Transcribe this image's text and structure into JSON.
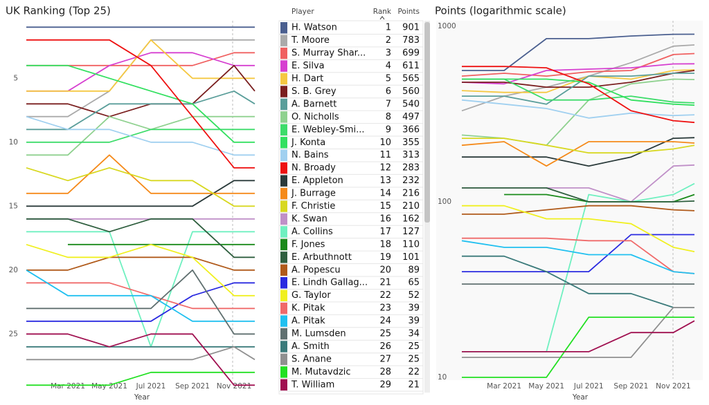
{
  "chart_data": [
    {
      "type": "line",
      "title": "UK Ranking (Top 25)",
      "x_label": "Year",
      "x": [
        "2021-01",
        "2021-03",
        "2021-05",
        "2021-07",
        "2021-09",
        "2021-11",
        "2021-12"
      ],
      "xlim": [
        "2021-01",
        "2021-12"
      ],
      "xticks": [
        {
          "value": "2021-03",
          "label": "Mar 2021"
        },
        {
          "value": "2021-05",
          "label": "May 2021"
        },
        {
          "value": "2021-07",
          "label": "Jul 2021"
        },
        {
          "value": "2021-09",
          "label": "Sep 2021"
        },
        {
          "value": "2021-11",
          "label": "Nov 2021"
        }
      ],
      "ylim": [
        0.5,
        28.5
      ],
      "y_reversed": true,
      "yticks": [
        5,
        10,
        15,
        20,
        25
      ],
      "grid": false,
      "series": [
        {
          "color": "#4a5f8f",
          "values": [
            1,
            1,
            1,
            1,
            1,
            1,
            1
          ]
        },
        {
          "color": "#aaaaaa",
          "values": [
            8,
            8,
            6,
            2,
            2,
            2,
            2
          ]
        },
        {
          "color": "#f06060",
          "values": [
            4,
            4,
            4,
            4,
            4,
            3,
            3
          ]
        },
        {
          "color": "#d63fd0",
          "values": [
            6,
            6,
            4,
            3,
            3,
            4,
            4
          ]
        },
        {
          "color": "#f5c842",
          "values": [
            6,
            6,
            6,
            2,
            5,
            5,
            5
          ]
        },
        {
          "color": "#7a1f1f",
          "values": [
            7,
            7,
            8,
            7,
            7,
            4,
            6
          ]
        },
        {
          "color": "#5a9e9a",
          "values": [
            9,
            9,
            7,
            7,
            7,
            6,
            7
          ]
        },
        {
          "color": "#8fd18f",
          "values": [
            11,
            11,
            8,
            9,
            8,
            8,
            8
          ]
        },
        {
          "color": "#3ddc6a",
          "values": [
            10,
            10,
            10,
            9,
            9,
            9,
            9
          ]
        },
        {
          "color": "#33e060",
          "values": [
            4,
            4,
            5,
            6,
            7,
            10,
            10
          ]
        },
        {
          "color": "#a0d0f0",
          "values": [
            8,
            9,
            9,
            10,
            10,
            11,
            11
          ]
        },
        {
          "color": "#ee1111",
          "values": [
            2,
            2,
            2,
            4,
            8,
            12,
            12
          ]
        },
        {
          "color": "#2a3a3a",
          "values": [
            15,
            15,
            15,
            15,
            15,
            13,
            13
          ]
        },
        {
          "color": "#f58a1a",
          "values": [
            14,
            14,
            11,
            14,
            14,
            14,
            14
          ]
        },
        {
          "color": "#d8d820",
          "values": [
            12,
            13,
            12,
            13,
            13,
            15,
            15
          ]
        },
        {
          "color": "#c090c8",
          "values": [
            16,
            16,
            16,
            16,
            16,
            16,
            16
          ]
        },
        {
          "color": "#6ff0c0",
          "values": [
            17,
            17,
            17,
            26,
            17,
            17,
            17
          ]
        },
        {
          "color": "#1a8a1a",
          "values": [
            null,
            18,
            18,
            18,
            18,
            18,
            18
          ]
        },
        {
          "color": "#2f5f3f",
          "values": [
            16,
            16,
            17,
            16,
            16,
            19,
            19
          ]
        },
        {
          "color": "#b05a1a",
          "values": [
            20,
            20,
            19,
            19,
            19,
            20,
            20
          ]
        },
        {
          "color": "#2a2ae0",
          "values": [
            24,
            24,
            24,
            24,
            22,
            21,
            21
          ]
        },
        {
          "color": "#f0f020",
          "values": [
            18,
            19,
            19,
            18,
            19,
            22,
            22
          ]
        },
        {
          "color": "#f06a6a",
          "values": [
            21,
            21,
            21,
            22,
            23,
            23,
            23
          ]
        },
        {
          "color": "#20c0f0",
          "values": [
            20,
            22,
            22,
            22,
            24,
            24,
            24
          ]
        },
        {
          "color": "#607070",
          "values": [
            23,
            23,
            23,
            23,
            20,
            25,
            25
          ]
        },
        {
          "color": "#3a7a7a",
          "values": [
            26,
            26,
            26,
            26,
            26,
            26,
            26
          ]
        },
        {
          "color": "#909090",
          "values": [
            27,
            27,
            27,
            27,
            27,
            26,
            27
          ]
        },
        {
          "color": "#22e022",
          "values": [
            29,
            29,
            29,
            28,
            28,
            28,
            28
          ]
        },
        {
          "color": "#a01050",
          "values": [
            25,
            25,
            26,
            25,
            25,
            29,
            29
          ]
        }
      ]
    },
    {
      "type": "line",
      "title": "Points (logarithmic scale)",
      "x_label": "Year",
      "x": [
        "2021-01",
        "2021-03",
        "2021-05",
        "2021-07",
        "2021-09",
        "2021-11",
        "2021-12"
      ],
      "xlim": [
        "2021-01",
        "2021-12"
      ],
      "xticks": [
        {
          "value": "2021-03",
          "label": "Mar 2021"
        },
        {
          "value": "2021-05",
          "label": "May 2021"
        },
        {
          "value": "2021-07",
          "label": "Jul 2021"
        },
        {
          "value": "2021-09",
          "label": "Sep 2021"
        },
        {
          "value": "2021-11",
          "label": "Nov 2021"
        }
      ],
      "ylim": [
        10,
        1000
      ],
      "yscale": "log",
      "yticks": [
        10,
        100,
        1000
      ],
      "grid": false,
      "series": [
        {
          "color": "#4a5f8f",
          "values": [
            560,
            560,
            850,
            850,
            880,
            900,
            901
          ]
        },
        {
          "color": "#aaaaaa",
          "values": [
            330,
            400,
            450,
            520,
            620,
            770,
            783
          ]
        },
        {
          "color": "#f06060",
          "values": [
            520,
            540,
            520,
            550,
            560,
            690,
            699
          ]
        },
        {
          "color": "#d63fd0",
          "values": [
            480,
            470,
            560,
            570,
            580,
            610,
            611
          ]
        },
        {
          "color": "#f5c842",
          "values": [
            430,
            420,
            420,
            520,
            500,
            560,
            565
          ]
        },
        {
          "color": "#7a1f1f",
          "values": [
            480,
            480,
            450,
            450,
            480,
            540,
            560
          ]
        },
        {
          "color": "#5a9e9a",
          "values": [
            400,
            400,
            360,
            520,
            520,
            540,
            540
          ]
        },
        {
          "color": "#8fd18f",
          "values": [
            240,
            230,
            210,
            380,
            470,
            500,
            497
          ]
        },
        {
          "color": "#3ddc6a",
          "values": [
            500,
            500,
            380,
            380,
            400,
            370,
            366
          ]
        },
        {
          "color": "#33e060",
          "values": [
            500,
            500,
            500,
            480,
            380,
            360,
            355
          ]
        },
        {
          "color": "#a0d0f0",
          "values": [
            380,
            360,
            340,
            300,
            320,
            310,
            313
          ]
        },
        {
          "color": "#ee1111",
          "values": [
            590,
            590,
            580,
            470,
            330,
            290,
            283
          ]
        },
        {
          "color": "#2a3a3a",
          "values": [
            180,
            180,
            180,
            160,
            180,
            230,
            232
          ]
        },
        {
          "color": "#f58a1a",
          "values": [
            210,
            220,
            160,
            220,
            220,
            220,
            216
          ]
        },
        {
          "color": "#d8d820",
          "values": [
            230,
            230,
            210,
            190,
            190,
            200,
            210
          ]
        },
        {
          "color": "#c090c8",
          "values": [
            120,
            120,
            120,
            120,
            100,
            160,
            162
          ]
        },
        {
          "color": "#6ff0c0",
          "values": [
            14,
            14,
            14,
            110,
            100,
            110,
            127
          ]
        },
        {
          "color": "#1a8a1a",
          "values": [
            null,
            110,
            110,
            100,
            100,
            100,
            110
          ]
        },
        {
          "color": "#2f5f3f",
          "values": [
            120,
            120,
            120,
            100,
            100,
            100,
            101
          ]
        },
        {
          "color": "#b05a1a",
          "values": [
            85,
            85,
            90,
            95,
            95,
            90,
            89
          ]
        },
        {
          "color": "#2a2ae0",
          "values": [
            40,
            40,
            40,
            40,
            65,
            65,
            65
          ]
        },
        {
          "color": "#f0f020",
          "values": [
            95,
            95,
            80,
            80,
            75,
            55,
            52
          ]
        },
        {
          "color": "#f06a6a",
          "values": [
            62,
            62,
            62,
            60,
            60,
            40,
            39
          ]
        },
        {
          "color": "#20c0f0",
          "values": [
            60,
            55,
            55,
            50,
            50,
            40,
            39
          ]
        },
        {
          "color": "#607070",
          "values": [
            34,
            34,
            34,
            34,
            34,
            34,
            34
          ]
        },
        {
          "color": "#3a7a7a",
          "values": [
            49,
            49,
            40,
            30,
            30,
            25,
            25
          ]
        },
        {
          "color": "#909090",
          "values": [
            13,
            13,
            13,
            13,
            13,
            25,
            25
          ]
        },
        {
          "color": "#22e022",
          "values": [
            10,
            10,
            10,
            22,
            22,
            22,
            22
          ]
        },
        {
          "color": "#a01050",
          "values": [
            14,
            14,
            14,
            14,
            18,
            18,
            21
          ]
        }
      ]
    }
  ],
  "table": {
    "columns": [
      "Player",
      "Rank",
      "Points"
    ],
    "rows": [
      {
        "player": "H. Watson",
        "rank": 1,
        "points": 901,
        "color": "#4a5f8f"
      },
      {
        "player": "T. Moore",
        "rank": 2,
        "points": 783,
        "color": "#aaaaaa"
      },
      {
        "player": "S. Murray Shar...",
        "rank": 3,
        "points": 699,
        "color": "#f06060"
      },
      {
        "player": "E. Silva",
        "rank": 4,
        "points": 611,
        "color": "#d63fd0"
      },
      {
        "player": "H. Dart",
        "rank": 5,
        "points": 565,
        "color": "#f5c842"
      },
      {
        "player": "S. B. Grey",
        "rank": 6,
        "points": 560,
        "color": "#7a1f1f"
      },
      {
        "player": "A. Barnett",
        "rank": 7,
        "points": 540,
        "color": "#5a9e9a"
      },
      {
        "player": "O. Nicholls",
        "rank": 8,
        "points": 497,
        "color": "#8fd18f"
      },
      {
        "player": "E. Webley-Smi...",
        "rank": 9,
        "points": 366,
        "color": "#3ddc6a"
      },
      {
        "player": "J. Konta",
        "rank": 10,
        "points": 355,
        "color": "#33e060"
      },
      {
        "player": "N. Bains",
        "rank": 11,
        "points": 313,
        "color": "#a0d0f0"
      },
      {
        "player": "N. Broady",
        "rank": 12,
        "points": 283,
        "color": "#ee1111"
      },
      {
        "player": "E. Appleton",
        "rank": 13,
        "points": 232,
        "color": "#2a3a3a"
      },
      {
        "player": "J. Burrage",
        "rank": 14,
        "points": 216,
        "color": "#f58a1a"
      },
      {
        "player": "F. Christie",
        "rank": 15,
        "points": 210,
        "color": "#d8d820"
      },
      {
        "player": "K. Swan",
        "rank": 16,
        "points": 162,
        "color": "#c090c8"
      },
      {
        "player": "A. Collins",
        "rank": 17,
        "points": 127,
        "color": "#6ff0c0"
      },
      {
        "player": "F. Jones",
        "rank": 18,
        "points": 110,
        "color": "#1a8a1a"
      },
      {
        "player": "E. Arbuthnott",
        "rank": 19,
        "points": 101,
        "color": "#2f5f3f"
      },
      {
        "player": "A. Popescu",
        "rank": 20,
        "points": 89,
        "color": "#b05a1a"
      },
      {
        "player": "E. Lindh Gallag...",
        "rank": 21,
        "points": 65,
        "color": "#2a2ae0"
      },
      {
        "player": "G. Taylor",
        "rank": 22,
        "points": 52,
        "color": "#f0f020"
      },
      {
        "player": "K. Pitak",
        "rank": 23,
        "points": 39,
        "color": "#f06a6a"
      },
      {
        "player": "A. Pitak",
        "rank": 24,
        "points": 39,
        "color": "#20c0f0"
      },
      {
        "player": "M. Lumsden",
        "rank": 25,
        "points": 34,
        "color": "#607070"
      },
      {
        "player": "A. Smith",
        "rank": 26,
        "points": 25,
        "color": "#3a7a7a"
      },
      {
        "player": "S. Anane",
        "rank": 27,
        "points": 25,
        "color": "#909090"
      },
      {
        "player": "M. Mutavdzic",
        "rank": 28,
        "points": 22,
        "color": "#22e022"
      },
      {
        "player": "T. William",
        "rank": 29,
        "points": 21,
        "color": "#a01050"
      }
    ]
  }
}
